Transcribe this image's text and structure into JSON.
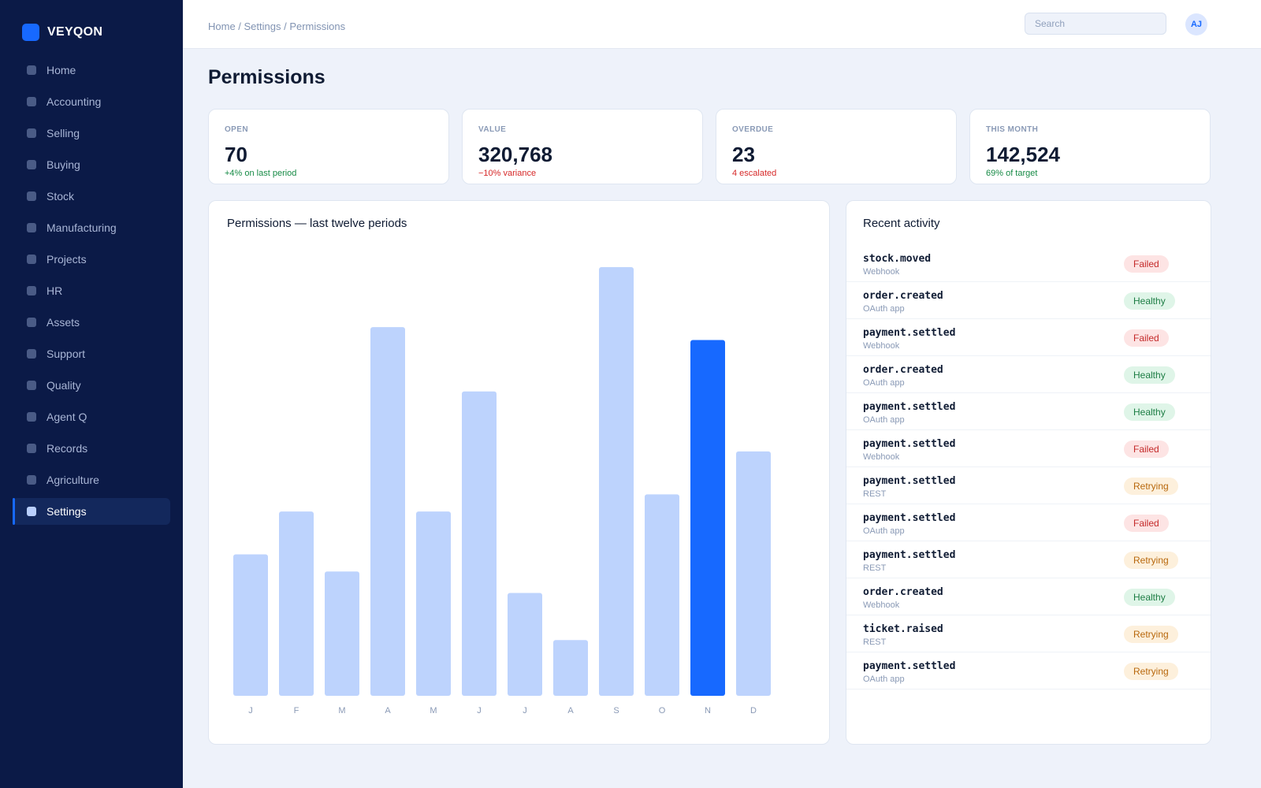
{
  "brand": {
    "name": "VEYQON"
  },
  "sidebar": {
    "items": [
      {
        "label": "Home",
        "active": false
      },
      {
        "label": "Accounting",
        "active": false
      },
      {
        "label": "Selling",
        "active": false
      },
      {
        "label": "Buying",
        "active": false
      },
      {
        "label": "Stock",
        "active": false
      },
      {
        "label": "Manufacturing",
        "active": false
      },
      {
        "label": "Projects",
        "active": false
      },
      {
        "label": "HR",
        "active": false
      },
      {
        "label": "Assets",
        "active": false
      },
      {
        "label": "Support",
        "active": false
      },
      {
        "label": "Quality",
        "active": false
      },
      {
        "label": "Agent Q",
        "active": false
      },
      {
        "label": "Records",
        "active": false
      },
      {
        "label": "Agriculture",
        "active": false
      },
      {
        "label": "Settings",
        "active": true
      }
    ]
  },
  "header": {
    "breadcrumb": "Home / Settings / Permissions",
    "search_placeholder": "Search",
    "avatar_initials": "AJ"
  },
  "page": {
    "title": "Permissions"
  },
  "kpis": [
    {
      "label": "OPEN",
      "value": "70",
      "delta": "+4% on last period",
      "tone": "pos"
    },
    {
      "label": "VALUE",
      "value": "320,768",
      "delta": "−10% variance",
      "tone": "neg"
    },
    {
      "label": "OVERDUE",
      "value": "23",
      "delta": "4 escalated",
      "tone": "neg"
    },
    {
      "label": "THIS MONTH",
      "value": "142,524",
      "delta": "69% of target",
      "tone": "pos"
    }
  ],
  "chart_data": {
    "type": "bar",
    "title": "Permissions — last twelve periods",
    "categories": [
      "J",
      "F",
      "M",
      "A",
      "M",
      "J",
      "J",
      "A",
      "S",
      "O",
      "N",
      "D"
    ],
    "values": [
      33,
      43,
      29,
      86,
      43,
      71,
      24,
      13,
      100,
      47,
      83,
      57
    ],
    "highlight_index": 10,
    "ylim": [
      0,
      100
    ],
    "colors": {
      "bar": "#bdd3fd",
      "highlight": "#1769ff"
    }
  },
  "activity": {
    "title": "Recent activity",
    "rows": [
      {
        "event": "stock.moved",
        "source": "Webhook",
        "status": "Failed"
      },
      {
        "event": "order.created",
        "source": "OAuth app",
        "status": "Healthy"
      },
      {
        "event": "payment.settled",
        "source": "Webhook",
        "status": "Failed"
      },
      {
        "event": "order.created",
        "source": "OAuth app",
        "status": "Healthy"
      },
      {
        "event": "payment.settled",
        "source": "OAuth app",
        "status": "Healthy"
      },
      {
        "event": "payment.settled",
        "source": "Webhook",
        "status": "Failed"
      },
      {
        "event": "payment.settled",
        "source": "REST",
        "status": "Retrying"
      },
      {
        "event": "payment.settled",
        "source": "OAuth app",
        "status": "Failed"
      },
      {
        "event": "payment.settled",
        "source": "REST",
        "status": "Retrying"
      },
      {
        "event": "order.created",
        "source": "Webhook",
        "status": "Healthy"
      },
      {
        "event": "ticket.raised",
        "source": "REST",
        "status": "Retrying"
      },
      {
        "event": "payment.settled",
        "source": "OAuth app",
        "status": "Retrying"
      }
    ]
  }
}
